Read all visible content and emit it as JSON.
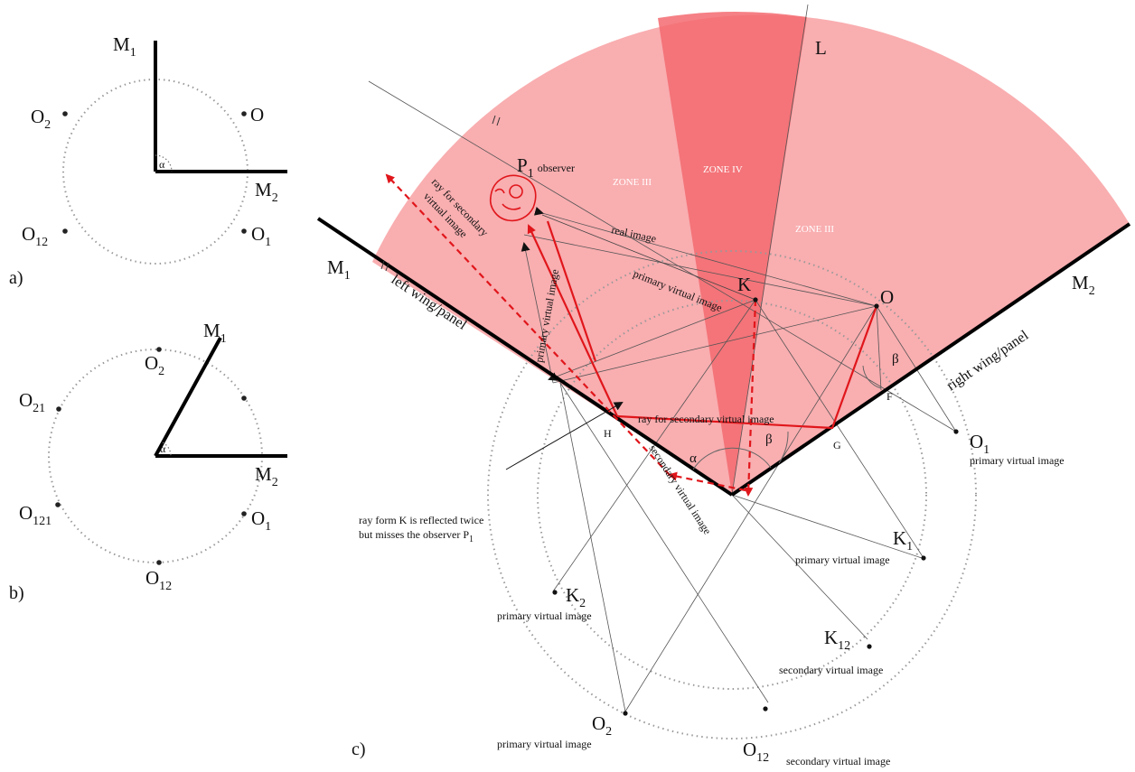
{
  "panel_a": {
    "letter": "a)",
    "mirror1": "M",
    "mirror1_sub": "1",
    "mirror2": "M",
    "mirror2_sub": "2",
    "angle": "α",
    "points": [
      {
        "main": "O",
        "sub": ""
      },
      {
        "main": "O",
        "sub": "2"
      },
      {
        "main": "O",
        "sub": "12"
      },
      {
        "main": "O",
        "sub": "1"
      }
    ]
  },
  "panel_b": {
    "letter": "b)",
    "mirror1": "M",
    "mirror1_sub": "1",
    "mirror2": "M",
    "mirror2_sub": "2",
    "angle": "α",
    "points": [
      {
        "main": "O",
        "sub": "2"
      },
      {
        "main": "O",
        "sub": "21"
      },
      {
        "main": "O",
        "sub": "121"
      },
      {
        "main": "O",
        "sub": "12"
      },
      {
        "main": "O",
        "sub": "1"
      }
    ]
  },
  "panel_c": {
    "letter": "c)",
    "mirror1": "M",
    "mirror1_sub": "1",
    "mirror2": "M",
    "mirror2_sub": "2",
    "left_wing": "left wing/panel",
    "right_wing": "right wing/panel",
    "line_L": "L",
    "observer_main": "P",
    "observer_sub": "1",
    "observer_text": "observer",
    "zones": [
      "ZONE III",
      "ZONE IV",
      "ZONE III"
    ],
    "ray_labels": {
      "real_image": "real image",
      "primary_virtual_1": "primary virtual image",
      "primary_virtual_2": "primary virtual image",
      "secondary_ray_left_1": "ray for secondary",
      "secondary_ray_left_2": "virtual image",
      "secondary_ray_bottom": "ray for secondary virtual image",
      "secondary_virtual_diag": "secondary virtual image"
    },
    "points": {
      "K": "K",
      "O": "O",
      "H": "H",
      "G": "G",
      "F": "F",
      "alpha": "α",
      "beta1": "β",
      "beta2": "β",
      "O1_main": "O",
      "O1_sub": "1",
      "O1_note": "primary virtual image",
      "K1_main": "K",
      "K1_sub": "1",
      "K1_note": "primary virtual image",
      "K2_main": "K",
      "K2_sub": "2",
      "K2_note": "primary virtual image",
      "K12_main": "K",
      "K12_sub": "12",
      "K12_note": "secondary virtual image",
      "O2_main": "O",
      "O2_sub": "2",
      "O2_note": "primary virtual image",
      "O12_main": "O",
      "O12_sub": "12",
      "O12_note": "secondary virtual image"
    },
    "annotation_line1": "ray form K is reflected twice",
    "annotation_line2": "but misses the observer P",
    "annotation_sub": "1"
  }
}
